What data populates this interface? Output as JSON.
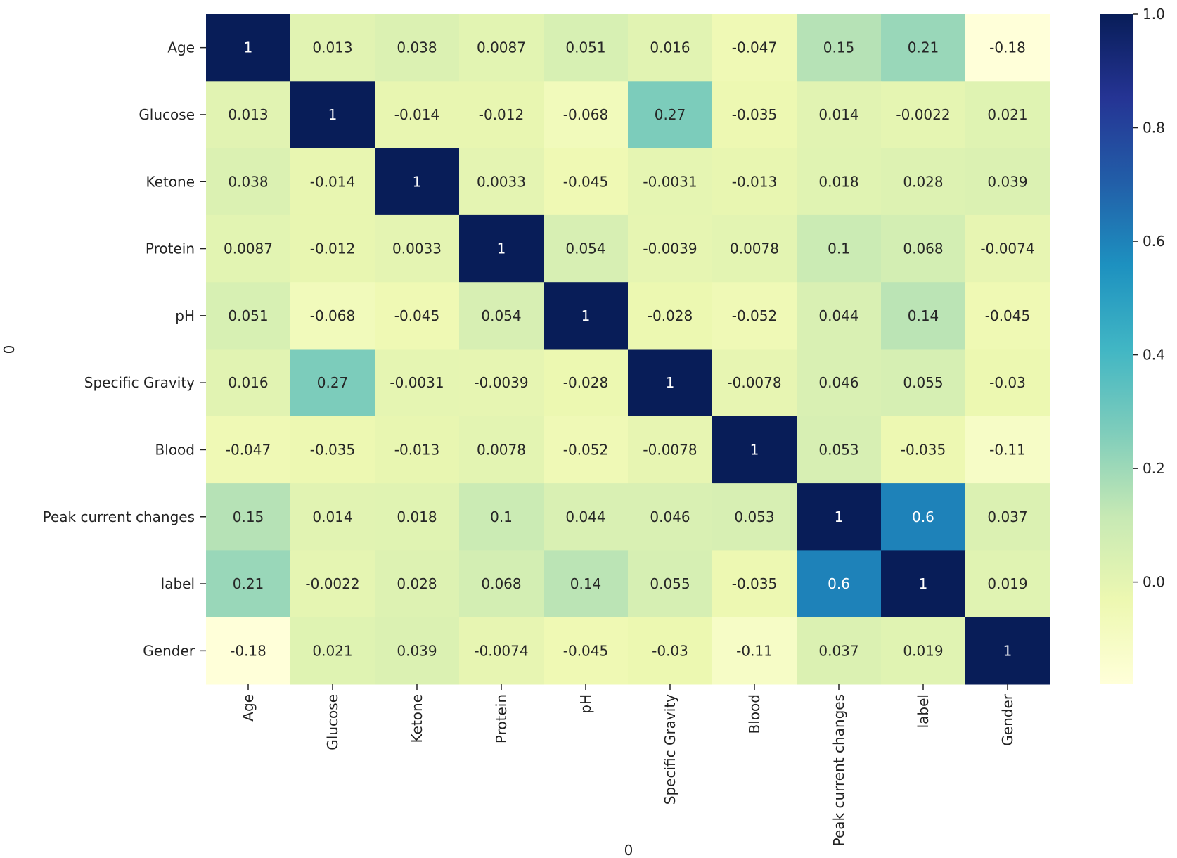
{
  "chart_data": {
    "type": "heatmap",
    "title": "",
    "xlabel": "0",
    "ylabel": "0",
    "rows": [
      "Age",
      "Glucose",
      "Ketone",
      "Protein",
      "pH",
      "Specific Gravity",
      "Blood",
      "Peak current changes",
      "label",
      "Gender"
    ],
    "columns": [
      "Age",
      "Glucose",
      "Ketone",
      "Protein",
      "pH",
      "Specific Gravity",
      "Blood",
      "Peak current changes",
      "label",
      "Gender"
    ],
    "values": [
      [
        1,
        0.013,
        0.038,
        0.0087,
        0.051,
        0.016,
        -0.047,
        0.15,
        0.21,
        -0.18
      ],
      [
        0.013,
        1,
        -0.014,
        -0.012,
        -0.068,
        0.27,
        -0.035,
        0.014,
        -0.0022,
        0.021
      ],
      [
        0.038,
        -0.014,
        1,
        0.0033,
        -0.045,
        -0.0031,
        -0.013,
        0.018,
        0.028,
        0.039
      ],
      [
        0.0087,
        -0.012,
        0.0033,
        1,
        0.054,
        -0.0039,
        0.0078,
        0.1,
        0.068,
        -0.0074
      ],
      [
        0.051,
        -0.068,
        -0.045,
        0.054,
        1,
        -0.028,
        -0.052,
        0.044,
        0.14,
        -0.045
      ],
      [
        0.016,
        0.27,
        -0.0031,
        -0.0039,
        -0.028,
        1,
        -0.0078,
        0.046,
        0.055,
        -0.03
      ],
      [
        -0.047,
        -0.035,
        -0.013,
        0.0078,
        -0.052,
        -0.0078,
        1,
        0.053,
        -0.035,
        -0.11
      ],
      [
        0.15,
        0.014,
        0.018,
        0.1,
        0.044,
        0.046,
        0.053,
        1,
        0.6,
        0.037
      ],
      [
        0.21,
        -0.0022,
        0.028,
        0.068,
        0.14,
        0.055,
        -0.035,
        0.6,
        1,
        0.019
      ],
      [
        -0.18,
        0.021,
        0.039,
        -0.0074,
        -0.045,
        -0.03,
        -0.11,
        0.037,
        0.019,
        1
      ]
    ],
    "colormap": "YlGnBu",
    "colormap_stops": [
      "#ffffd9",
      "#edf8b1",
      "#c7e9b4",
      "#7fcdbb",
      "#41b6c4",
      "#1d91c0",
      "#225ea8",
      "#253494",
      "#081d58"
    ],
    "vmin": -0.18,
    "vmax": 1.0,
    "colorbar_ticks": [
      "0.0",
      "0.2",
      "0.4",
      "0.6",
      "0.8",
      "1.0"
    ],
    "annotations": true
  }
}
